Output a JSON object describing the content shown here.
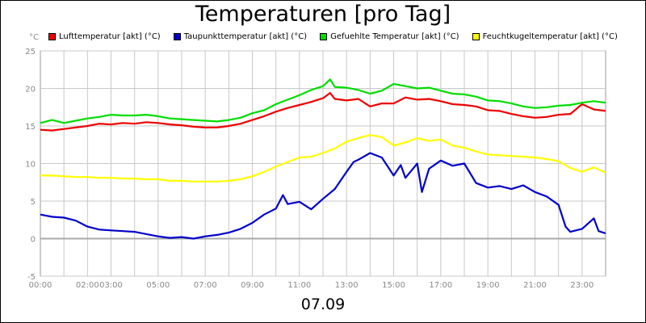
{
  "chart_data": {
    "type": "line",
    "title": "Temperaturen [pro Tag]",
    "ylabel": "°C",
    "date_label": "07.09",
    "xlim": [
      0,
      24
    ],
    "ylim": [
      -5,
      25
    ],
    "yticks": [
      -5,
      0,
      5,
      10,
      15,
      20,
      25
    ],
    "xticks": [
      {
        "v": 0,
        "label": "00:00"
      },
      {
        "v": 2,
        "label": "02:00"
      },
      {
        "v": 3,
        "label": "03:00"
      },
      {
        "v": 5,
        "label": "05:00"
      },
      {
        "v": 7,
        "label": "07:00"
      },
      {
        "v": 9,
        "label": "09:00"
      },
      {
        "v": 11,
        "label": "11:00"
      },
      {
        "v": 13,
        "label": "13:00"
      },
      {
        "v": 15,
        "label": "15:00"
      },
      {
        "v": 17,
        "label": "17:00"
      },
      {
        "v": 19,
        "label": "19:00"
      },
      {
        "v": 21,
        "label": "21:00"
      },
      {
        "v": 23,
        "label": "23:00"
      }
    ],
    "grid": true,
    "legend_position": "top",
    "series": [
      {
        "name": "Lufttemperatur [akt] (°C)",
        "color": "#ee0000",
        "points": [
          [
            0,
            14.5
          ],
          [
            0.5,
            14.4
          ],
          [
            1,
            14.6
          ],
          [
            1.5,
            14.8
          ],
          [
            2,
            15.0
          ],
          [
            2.5,
            15.3
          ],
          [
            3,
            15.2
          ],
          [
            3.5,
            15.4
          ],
          [
            4,
            15.3
          ],
          [
            4.5,
            15.5
          ],
          [
            5,
            15.4
          ],
          [
            5.5,
            15.2
          ],
          [
            6,
            15.1
          ],
          [
            6.5,
            14.9
          ],
          [
            7,
            14.8
          ],
          [
            7.5,
            14.8
          ],
          [
            8,
            15.0
          ],
          [
            8.5,
            15.3
          ],
          [
            9,
            15.8
          ],
          [
            9.5,
            16.3
          ],
          [
            10,
            16.9
          ],
          [
            10.5,
            17.4
          ],
          [
            11,
            17.8
          ],
          [
            11.5,
            18.2
          ],
          [
            12,
            18.7
          ],
          [
            12.3,
            19.4
          ],
          [
            12.5,
            18.6
          ],
          [
            13,
            18.4
          ],
          [
            13.5,
            18.6
          ],
          [
            14,
            17.6
          ],
          [
            14.5,
            18.0
          ],
          [
            15,
            18.0
          ],
          [
            15.5,
            18.8
          ],
          [
            16,
            18.5
          ],
          [
            16.5,
            18.6
          ],
          [
            17,
            18.3
          ],
          [
            17.5,
            17.9
          ],
          [
            18,
            17.8
          ],
          [
            18.5,
            17.6
          ],
          [
            19,
            17.1
          ],
          [
            19.5,
            17.0
          ],
          [
            20,
            16.6
          ],
          [
            20.5,
            16.3
          ],
          [
            21,
            16.1
          ],
          [
            21.5,
            16.2
          ],
          [
            22,
            16.5
          ],
          [
            22.5,
            16.6
          ],
          [
            23,
            17.9
          ],
          [
            23.5,
            17.2
          ],
          [
            24,
            17.0
          ]
        ]
      },
      {
        "name": "Taupunkttemperatur [akt] (°C)",
        "color": "#0000cc",
        "points": [
          [
            0,
            3.2
          ],
          [
            0.5,
            2.9
          ],
          [
            1,
            2.8
          ],
          [
            1.5,
            2.4
          ],
          [
            2,
            1.6
          ],
          [
            2.5,
            1.2
          ],
          [
            3,
            1.1
          ],
          [
            3.5,
            1.0
          ],
          [
            4,
            0.9
          ],
          [
            4.5,
            0.6
          ],
          [
            5,
            0.3
          ],
          [
            5.5,
            0.1
          ],
          [
            6,
            0.2
          ],
          [
            6.5,
            0.0
          ],
          [
            7,
            0.3
          ],
          [
            7.5,
            0.5
          ],
          [
            8,
            0.8
          ],
          [
            8.5,
            1.3
          ],
          [
            9,
            2.1
          ],
          [
            9.5,
            3.2
          ],
          [
            10,
            4.0
          ],
          [
            10.3,
            5.8
          ],
          [
            10.5,
            4.6
          ],
          [
            11,
            4.9
          ],
          [
            11.5,
            3.9
          ],
          [
            12,
            5.3
          ],
          [
            12.5,
            6.6
          ],
          [
            13,
            8.9
          ],
          [
            13.3,
            10.2
          ],
          [
            13.5,
            10.5
          ],
          [
            14,
            11.4
          ],
          [
            14.5,
            10.8
          ],
          [
            15,
            8.4
          ],
          [
            15.3,
            9.8
          ],
          [
            15.5,
            8.1
          ],
          [
            16,
            10.0
          ],
          [
            16.2,
            6.2
          ],
          [
            16.5,
            9.3
          ],
          [
            17,
            10.4
          ],
          [
            17.5,
            9.7
          ],
          [
            18,
            10.0
          ],
          [
            18.5,
            7.4
          ],
          [
            19,
            6.8
          ],
          [
            19.5,
            7.0
          ],
          [
            20,
            6.6
          ],
          [
            20.5,
            7.1
          ],
          [
            21,
            6.2
          ],
          [
            21.5,
            5.6
          ],
          [
            22,
            4.5
          ],
          [
            22.3,
            1.6
          ],
          [
            22.5,
            0.9
          ],
          [
            23,
            1.3
          ],
          [
            23.5,
            2.7
          ],
          [
            23.7,
            1.0
          ],
          [
            24,
            0.7
          ]
        ]
      },
      {
        "name": "Gefuehlte Temperatur [akt] (°C)",
        "color": "#00dd00",
        "points": [
          [
            0,
            15.4
          ],
          [
            0.5,
            15.8
          ],
          [
            1,
            15.4
          ],
          [
            1.5,
            15.7
          ],
          [
            2,
            16.0
          ],
          [
            2.5,
            16.2
          ],
          [
            3,
            16.5
          ],
          [
            3.5,
            16.4
          ],
          [
            4,
            16.4
          ],
          [
            4.5,
            16.5
          ],
          [
            5,
            16.3
          ],
          [
            5.5,
            16.0
          ],
          [
            6,
            15.9
          ],
          [
            6.5,
            15.8
          ],
          [
            7,
            15.7
          ],
          [
            7.5,
            15.6
          ],
          [
            8,
            15.8
          ],
          [
            8.5,
            16.1
          ],
          [
            9,
            16.7
          ],
          [
            9.5,
            17.1
          ],
          [
            10,
            17.9
          ],
          [
            10.5,
            18.5
          ],
          [
            11,
            19.1
          ],
          [
            11.5,
            19.8
          ],
          [
            12,
            20.3
          ],
          [
            12.3,
            21.2
          ],
          [
            12.5,
            20.2
          ],
          [
            13,
            20.1
          ],
          [
            13.5,
            19.8
          ],
          [
            14,
            19.3
          ],
          [
            14.5,
            19.7
          ],
          [
            15,
            20.6
          ],
          [
            15.5,
            20.3
          ],
          [
            16,
            20.0
          ],
          [
            16.5,
            20.1
          ],
          [
            17,
            19.7
          ],
          [
            17.5,
            19.3
          ],
          [
            18,
            19.2
          ],
          [
            18.5,
            18.9
          ],
          [
            19,
            18.4
          ],
          [
            19.5,
            18.3
          ],
          [
            20,
            18.0
          ],
          [
            20.5,
            17.6
          ],
          [
            21,
            17.4
          ],
          [
            21.5,
            17.5
          ],
          [
            22,
            17.7
          ],
          [
            22.5,
            17.8
          ],
          [
            23,
            18.1
          ],
          [
            23.5,
            18.3
          ],
          [
            24,
            18.1
          ]
        ]
      },
      {
        "name": "Feuchtkugeltemperatur [akt] (°C)",
        "color": "#ffff00",
        "points": [
          [
            0,
            8.4
          ],
          [
            0.5,
            8.4
          ],
          [
            1,
            8.3
          ],
          [
            1.5,
            8.2
          ],
          [
            2,
            8.2
          ],
          [
            2.5,
            8.1
          ],
          [
            3,
            8.1
          ],
          [
            3.5,
            8.0
          ],
          [
            4,
            8.0
          ],
          [
            4.5,
            7.9
          ],
          [
            5,
            7.9
          ],
          [
            5.5,
            7.7
          ],
          [
            6,
            7.7
          ],
          [
            6.5,
            7.6
          ],
          [
            7,
            7.6
          ],
          [
            7.5,
            7.6
          ],
          [
            8,
            7.7
          ],
          [
            8.5,
            7.9
          ],
          [
            9,
            8.3
          ],
          [
            9.5,
            8.9
          ],
          [
            10,
            9.6
          ],
          [
            10.5,
            10.2
          ],
          [
            11,
            10.8
          ],
          [
            11.5,
            10.9
          ],
          [
            12,
            11.4
          ],
          [
            12.5,
            12.0
          ],
          [
            13,
            12.9
          ],
          [
            13.5,
            13.4
          ],
          [
            14,
            13.8
          ],
          [
            14.5,
            13.5
          ],
          [
            15,
            12.4
          ],
          [
            15.5,
            12.8
          ],
          [
            16,
            13.4
          ],
          [
            16.5,
            13.0
          ],
          [
            17,
            13.2
          ],
          [
            17.5,
            12.4
          ],
          [
            18,
            12.1
          ],
          [
            18.5,
            11.6
          ],
          [
            19,
            11.2
          ],
          [
            19.5,
            11.1
          ],
          [
            20,
            11.0
          ],
          [
            20.5,
            10.9
          ],
          [
            21,
            10.8
          ],
          [
            21.5,
            10.6
          ],
          [
            22,
            10.3
          ],
          [
            22.5,
            9.4
          ],
          [
            23,
            8.9
          ],
          [
            23.5,
            9.5
          ],
          [
            24,
            8.8
          ]
        ]
      }
    ]
  }
}
